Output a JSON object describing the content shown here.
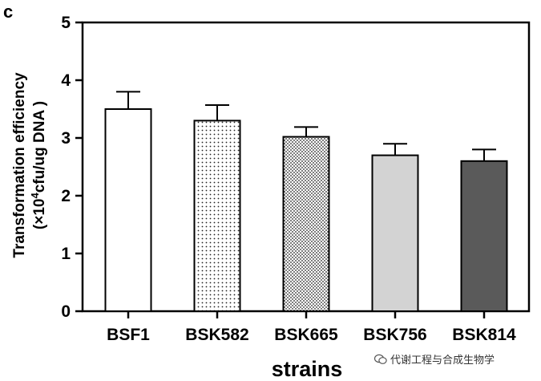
{
  "panel_label": "c",
  "watermark_text": "代谢工程与合成生物学",
  "chart_data": {
    "type": "bar",
    "title": "",
    "xlabel": "strains",
    "ylabel_line1": "Transformation efficiency",
    "ylabel_line2_prefix": "(×10",
    "ylabel_line2_sup": "4",
    "ylabel_line2_suffix": "cfu/ug DNA )",
    "ylim": [
      0,
      5
    ],
    "yticks": [
      0,
      1,
      2,
      3,
      4,
      5
    ],
    "categories": [
      "BSF1",
      "BSK582",
      "BSK665",
      "BSK756",
      "BSK814"
    ],
    "values": [
      3.5,
      3.3,
      3.02,
      2.7,
      2.6
    ],
    "errors": [
      0.3,
      0.27,
      0.17,
      0.2,
      0.2
    ],
    "fills": [
      "white",
      "fine-dots",
      "dense-dots",
      "light-gray",
      "dark-gray"
    ],
    "colors": {
      "light_gray": "#d3d3d3",
      "dark_gray": "#5a5a5a",
      "axis": "#000000"
    }
  }
}
